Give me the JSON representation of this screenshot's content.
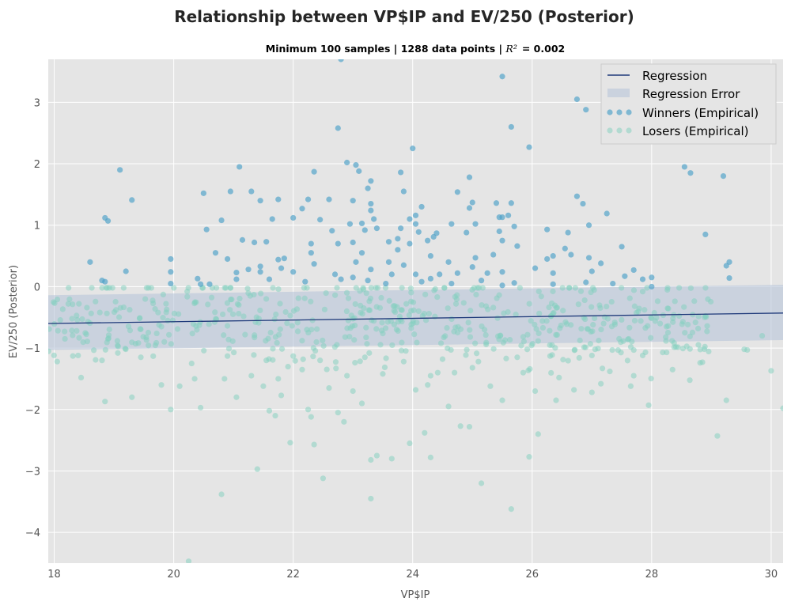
{
  "chart_data": {
    "type": "scatter",
    "title": "Relationship between VP$IP and EV/250 (Posterior)",
    "subtitle": "Minimum 100 samples | 1288 data points | R² = 0.002",
    "subtitle_parts": {
      "prefix": "Minimum 100 samples | 1288 data points | ",
      "r2_symbol": "R²",
      "r2_value": "=  0.002"
    },
    "xlabel": "VP$IP",
    "ylabel": "EV/250 (Posterior)",
    "xlim": [
      17.9,
      30.2
    ],
    "ylim": [
      -4.5,
      3.7
    ],
    "x_ticks": [
      18,
      20,
      22,
      24,
      26,
      28,
      30
    ],
    "y_ticks": [
      3,
      2,
      1,
      0,
      -1,
      -2,
      -3,
      -4
    ],
    "x_tick_labels": [
      "18",
      "20",
      "22",
      "24",
      "26",
      "28",
      "30"
    ],
    "y_tick_labels": [
      "3",
      "2",
      "1",
      "0",
      "−1",
      "−2",
      "−3",
      "−4"
    ],
    "grid": true,
    "legend_position": "top-right",
    "legend": {
      "regression": "Regression",
      "regression_error": "Regression Error",
      "winners": "Winners (Empirical)",
      "losers": "Losers (Empirical)"
    },
    "colors": {
      "background": "#e5e5e5",
      "grid": "#ffffff",
      "regression": "#1f3a7a",
      "regression_error": "#b8c4d9",
      "winners": "#4aa0c8",
      "losers": "#7fd0bd"
    },
    "regression_line": {
      "x": [
        17.9,
        30.2
      ],
      "y": [
        -0.6,
        -0.43
      ]
    },
    "regression_band": {
      "x": [
        17.9,
        30.2
      ],
      "upper": [
        -0.14,
        0.03
      ],
      "lower": [
        -1.03,
        -0.87
      ]
    },
    "series": [
      {
        "name": "Winners (Empirical)",
        "points": [
          [
            22.8,
            3.7
          ],
          [
            25.5,
            3.42
          ],
          [
            26.75,
            3.05
          ],
          [
            26.9,
            2.88
          ],
          [
            22.75,
            2.58
          ],
          [
            25.65,
            2.6
          ],
          [
            24.0,
            2.25
          ],
          [
            25.95,
            2.27
          ],
          [
            22.9,
            2.02
          ],
          [
            23.05,
            1.98
          ],
          [
            19.1,
            1.9
          ],
          [
            21.1,
            1.95
          ],
          [
            23.1,
            1.88
          ],
          [
            22.35,
            1.87
          ],
          [
            23.8,
            1.86
          ],
          [
            28.55,
            1.95
          ],
          [
            28.65,
            1.85
          ],
          [
            29.2,
            1.8
          ],
          [
            24.95,
            1.78
          ],
          [
            23.3,
            1.72
          ],
          [
            23.25,
            1.6
          ],
          [
            20.5,
            1.52
          ],
          [
            20.95,
            1.55
          ],
          [
            21.3,
            1.55
          ],
          [
            23.85,
            1.55
          ],
          [
            24.75,
            1.54
          ],
          [
            26.75,
            1.47
          ],
          [
            19.3,
            1.41
          ],
          [
            21.45,
            1.4
          ],
          [
            21.75,
            1.42
          ],
          [
            22.25,
            1.42
          ],
          [
            22.6,
            1.42
          ],
          [
            23.0,
            1.4
          ],
          [
            23.3,
            1.35
          ],
          [
            25.0,
            1.37
          ],
          [
            25.4,
            1.36
          ],
          [
            25.65,
            1.36
          ],
          [
            26.85,
            1.35
          ],
          [
            22.15,
            1.27
          ],
          [
            23.3,
            1.24
          ],
          [
            24.15,
            1.3
          ],
          [
            24.95,
            1.28
          ],
          [
            27.25,
            1.19
          ],
          [
            25.5,
            1.13
          ],
          [
            24.05,
            1.16
          ],
          [
            22.0,
            1.12
          ],
          [
            23.35,
            1.1
          ],
          [
            21.65,
            1.1
          ],
          [
            22.45,
            1.09
          ],
          [
            18.85,
            1.12
          ],
          [
            18.9,
            1.07
          ],
          [
            20.8,
            1.08
          ],
          [
            23.95,
            1.1
          ],
          [
            25.45,
            1.13
          ],
          [
            25.6,
            1.16
          ],
          [
            22.95,
            1.02
          ],
          [
            23.15,
            1.03
          ],
          [
            24.05,
            1.02
          ],
          [
            24.65,
            1.02
          ],
          [
            25.05,
            1.02
          ],
          [
            25.7,
            0.98
          ],
          [
            26.95,
            1.0
          ],
          [
            20.55,
            0.93
          ],
          [
            22.65,
            0.91
          ],
          [
            23.2,
            0.92
          ],
          [
            23.4,
            0.95
          ],
          [
            23.8,
            0.95
          ],
          [
            24.1,
            0.89
          ],
          [
            24.4,
            0.87
          ],
          [
            24.9,
            0.88
          ],
          [
            25.45,
            0.9
          ],
          [
            26.25,
            0.93
          ],
          [
            26.6,
            0.88
          ],
          [
            28.9,
            0.85
          ],
          [
            21.15,
            0.76
          ],
          [
            21.35,
            0.72
          ],
          [
            21.55,
            0.73
          ],
          [
            22.3,
            0.7
          ],
          [
            22.75,
            0.7
          ],
          [
            23.0,
            0.72
          ],
          [
            23.6,
            0.73
          ],
          [
            23.75,
            0.78
          ],
          [
            23.95,
            0.7
          ],
          [
            24.25,
            0.75
          ],
          [
            24.35,
            0.81
          ],
          [
            25.5,
            0.75
          ],
          [
            26.55,
            0.62
          ],
          [
            27.5,
            0.65
          ],
          [
            20.7,
            0.55
          ],
          [
            22.3,
            0.55
          ],
          [
            23.15,
            0.55
          ],
          [
            23.75,
            0.6
          ],
          [
            24.3,
            0.5
          ],
          [
            25.05,
            0.47
          ],
          [
            25.35,
            0.52
          ],
          [
            25.75,
            0.66
          ],
          [
            26.25,
            0.45
          ],
          [
            26.35,
            0.5
          ],
          [
            26.65,
            0.52
          ],
          [
            26.95,
            0.47
          ],
          [
            27.15,
            0.38
          ],
          [
            29.3,
            0.4
          ],
          [
            18.6,
            0.4
          ],
          [
            19.95,
            0.45
          ],
          [
            20.9,
            0.45
          ],
          [
            21.45,
            0.33
          ],
          [
            21.75,
            0.44
          ],
          [
            21.85,
            0.46
          ],
          [
            22.35,
            0.37
          ],
          [
            23.05,
            0.4
          ],
          [
            23.6,
            0.4
          ],
          [
            23.85,
            0.35
          ],
          [
            24.6,
            0.4
          ],
          [
            25.0,
            0.32
          ],
          [
            29.25,
            0.34
          ],
          [
            19.2,
            0.25
          ],
          [
            19.95,
            0.24
          ],
          [
            20.4,
            0.13
          ],
          [
            21.05,
            0.23
          ],
          [
            21.25,
            0.28
          ],
          [
            21.45,
            0.24
          ],
          [
            21.8,
            0.3
          ],
          [
            22.0,
            0.24
          ],
          [
            22.7,
            0.2
          ],
          [
            23.3,
            0.28
          ],
          [
            23.65,
            0.2
          ],
          [
            24.05,
            0.2
          ],
          [
            24.45,
            0.2
          ],
          [
            24.75,
            0.22
          ],
          [
            25.25,
            0.22
          ],
          [
            25.5,
            0.24
          ],
          [
            26.05,
            0.3
          ],
          [
            26.35,
            0.22
          ],
          [
            27.0,
            0.25
          ],
          [
            27.7,
            0.27
          ],
          [
            28.0,
            0.15
          ],
          [
            18.8,
            0.1
          ],
          [
            18.85,
            0.08
          ],
          [
            19.95,
            0.05
          ],
          [
            20.45,
            0.04
          ],
          [
            20.6,
            0.04
          ],
          [
            21.05,
            0.12
          ],
          [
            21.6,
            0.12
          ],
          [
            22.2,
            0.08
          ],
          [
            22.8,
            0.12
          ],
          [
            23.25,
            0.1
          ],
          [
            23.55,
            0.05
          ],
          [
            24.15,
            0.08
          ],
          [
            24.65,
            0.05
          ],
          [
            25.15,
            0.1
          ],
          [
            25.7,
            0.06
          ],
          [
            26.35,
            0.04
          ],
          [
            26.9,
            0.07
          ],
          [
            27.35,
            0.05
          ],
          [
            27.55,
            0.17
          ],
          [
            27.85,
            0.12
          ],
          [
            28.0,
            0.0
          ],
          [
            29.3,
            0.14
          ],
          [
            23.0,
            0.15
          ],
          [
            24.3,
            0.13
          ],
          [
            25.5,
            0.02
          ]
        ]
      },
      {
        "name": "Losers (Empirical)",
        "points": [
          [
            20.25,
            -4.47
          ],
          [
            23.3,
            -3.45
          ],
          [
            20.8,
            -3.38
          ],
          [
            25.65,
            -3.62
          ],
          [
            25.15,
            -3.2
          ],
          [
            22.5,
            -3.12
          ],
          [
            21.4,
            -2.97
          ],
          [
            23.4,
            -2.75
          ],
          [
            23.65,
            -2.8
          ],
          [
            24.3,
            -2.78
          ],
          [
            25.95,
            -2.77
          ],
          [
            23.3,
            -2.82
          ],
          [
            22.35,
            -2.57
          ],
          [
            21.95,
            -2.54
          ],
          [
            23.95,
            -2.55
          ],
          [
            29.1,
            -2.43
          ],
          [
            26.1,
            -2.4
          ],
          [
            24.2,
            -2.38
          ],
          [
            22.85,
            -2.2
          ],
          [
            24.8,
            -2.27
          ],
          [
            24.95,
            -2.28
          ],
          [
            21.6,
            -2.02
          ],
          [
            22.25,
            -2.0
          ],
          [
            22.3,
            -2.12
          ],
          [
            22.75,
            -2.05
          ],
          [
            23.15,
            -1.9
          ],
          [
            19.95,
            -2.0
          ],
          [
            20.45,
            -1.97
          ],
          [
            18.85,
            -1.87
          ],
          [
            19.3,
            -1.8
          ],
          [
            21.7,
            -2.1
          ],
          [
            21.8,
            -1.77
          ],
          [
            24.6,
            -1.95
          ],
          [
            25.5,
            -1.85
          ],
          [
            26.4,
            -1.85
          ],
          [
            27.95,
            -1.93
          ],
          [
            29.25,
            -1.85
          ],
          [
            30.2,
            -1.98
          ],
          [
            20.1,
            -1.62
          ],
          [
            21.05,
            -1.8
          ],
          [
            21.5,
            -1.62
          ],
          [
            22.6,
            -1.65
          ],
          [
            23.0,
            -1.7
          ],
          [
            24.05,
            -1.68
          ],
          [
            25.3,
            -1.62
          ],
          [
            26.05,
            -1.7
          ],
          [
            26.7,
            -1.68
          ],
          [
            27.0,
            -1.72
          ],
          [
            27.15,
            -1.58
          ],
          [
            27.65,
            -1.62
          ],
          [
            18.45,
            -1.48
          ],
          [
            20.35,
            -1.5
          ],
          [
            20.85,
            -1.5
          ],
          [
            21.3,
            -1.45
          ],
          [
            21.75,
            -1.5
          ],
          [
            22.15,
            -1.35
          ],
          [
            22.9,
            -1.45
          ],
          [
            23.5,
            -1.42
          ],
          [
            24.3,
            -1.45
          ],
          [
            24.7,
            -1.4
          ],
          [
            25.0,
            -1.32
          ],
          [
            25.85,
            -1.4
          ],
          [
            26.45,
            -1.48
          ],
          [
            27.3,
            -1.38
          ],
          [
            27.7,
            -1.45
          ],
          [
            28.35,
            -1.35
          ],
          [
            28.85,
            -1.23
          ],
          [
            30.0,
            -1.37
          ],
          [
            18.05,
            -1.22
          ],
          [
            18.8,
            -1.2
          ],
          [
            19.45,
            -1.15
          ],
          [
            20.3,
            -1.25
          ],
          [
            20.9,
            -1.13
          ],
          [
            21.55,
            -1.2
          ],
          [
            22.0,
            -1.13
          ],
          [
            22.45,
            -1.2
          ],
          [
            23.2,
            -1.15
          ],
          [
            23.85,
            -1.22
          ],
          [
            24.5,
            -1.18
          ],
          [
            25.1,
            -1.22
          ],
          [
            25.75,
            -1.15
          ],
          [
            26.3,
            -1.13
          ],
          [
            27.0,
            -1.12
          ],
          [
            27.85,
            -1.12
          ],
          [
            28.25,
            -1.07
          ],
          [
            29.55,
            -1.02
          ],
          [
            29.85,
            -0.8
          ],
          [
            29.6,
            -1.03
          ],
          [
            18.4,
            -1.12
          ]
        ],
        "dense_band": {
          "x": [
            17.9,
            29.0
          ],
          "center_y": -0.6,
          "spread": 0.5,
          "count": 560
        }
      }
    ]
  }
}
